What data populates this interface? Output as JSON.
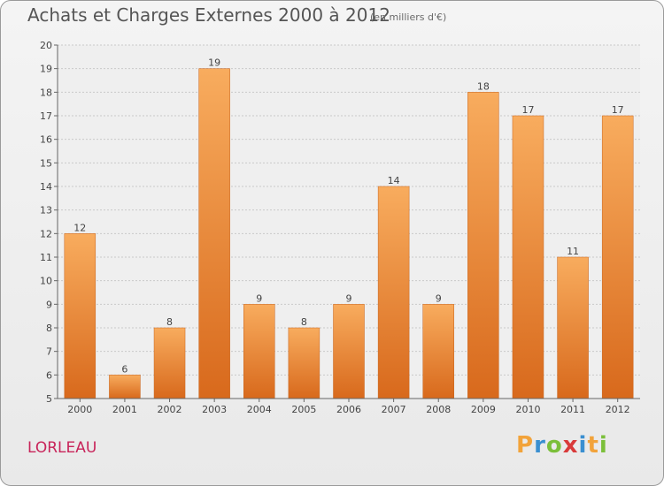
{
  "title": "Achats et Charges Externes 2000 à 2012",
  "subtitle": "(en milliers d'€)",
  "commune": "LORLEAU",
  "logo": {
    "text": "Proxiti",
    "letters": [
      "P",
      "r",
      "o",
      "x",
      "i",
      "t",
      "i"
    ],
    "colors": [
      "#f2a33a",
      "#3a8fd0",
      "#7bbf3a",
      "#d93a3a",
      "#3a8fd0",
      "#f2a33a",
      "#7bbf3a"
    ]
  },
  "chart_data": {
    "type": "bar",
    "title": "Achats et Charges Externes 2000 à 2012",
    "xlabel": "",
    "ylabel": "",
    "categories": [
      "2000",
      "2001",
      "2002",
      "2003",
      "2004",
      "2005",
      "2006",
      "2007",
      "2008",
      "2009",
      "2010",
      "2011",
      "2012"
    ],
    "values": [
      12,
      6,
      8,
      19,
      9,
      8,
      9,
      14,
      9,
      18,
      17,
      11,
      17
    ],
    "ylim": [
      5,
      20
    ],
    "yticks": [
      5,
      6,
      7,
      8,
      9,
      10,
      11,
      12,
      13,
      14,
      15,
      16,
      17,
      18,
      19,
      20
    ],
    "grid": true,
    "bar_color": "#f0903a",
    "bar_color_top": "#f8ac5e",
    "bar_color_bottom": "#d8691c"
  }
}
